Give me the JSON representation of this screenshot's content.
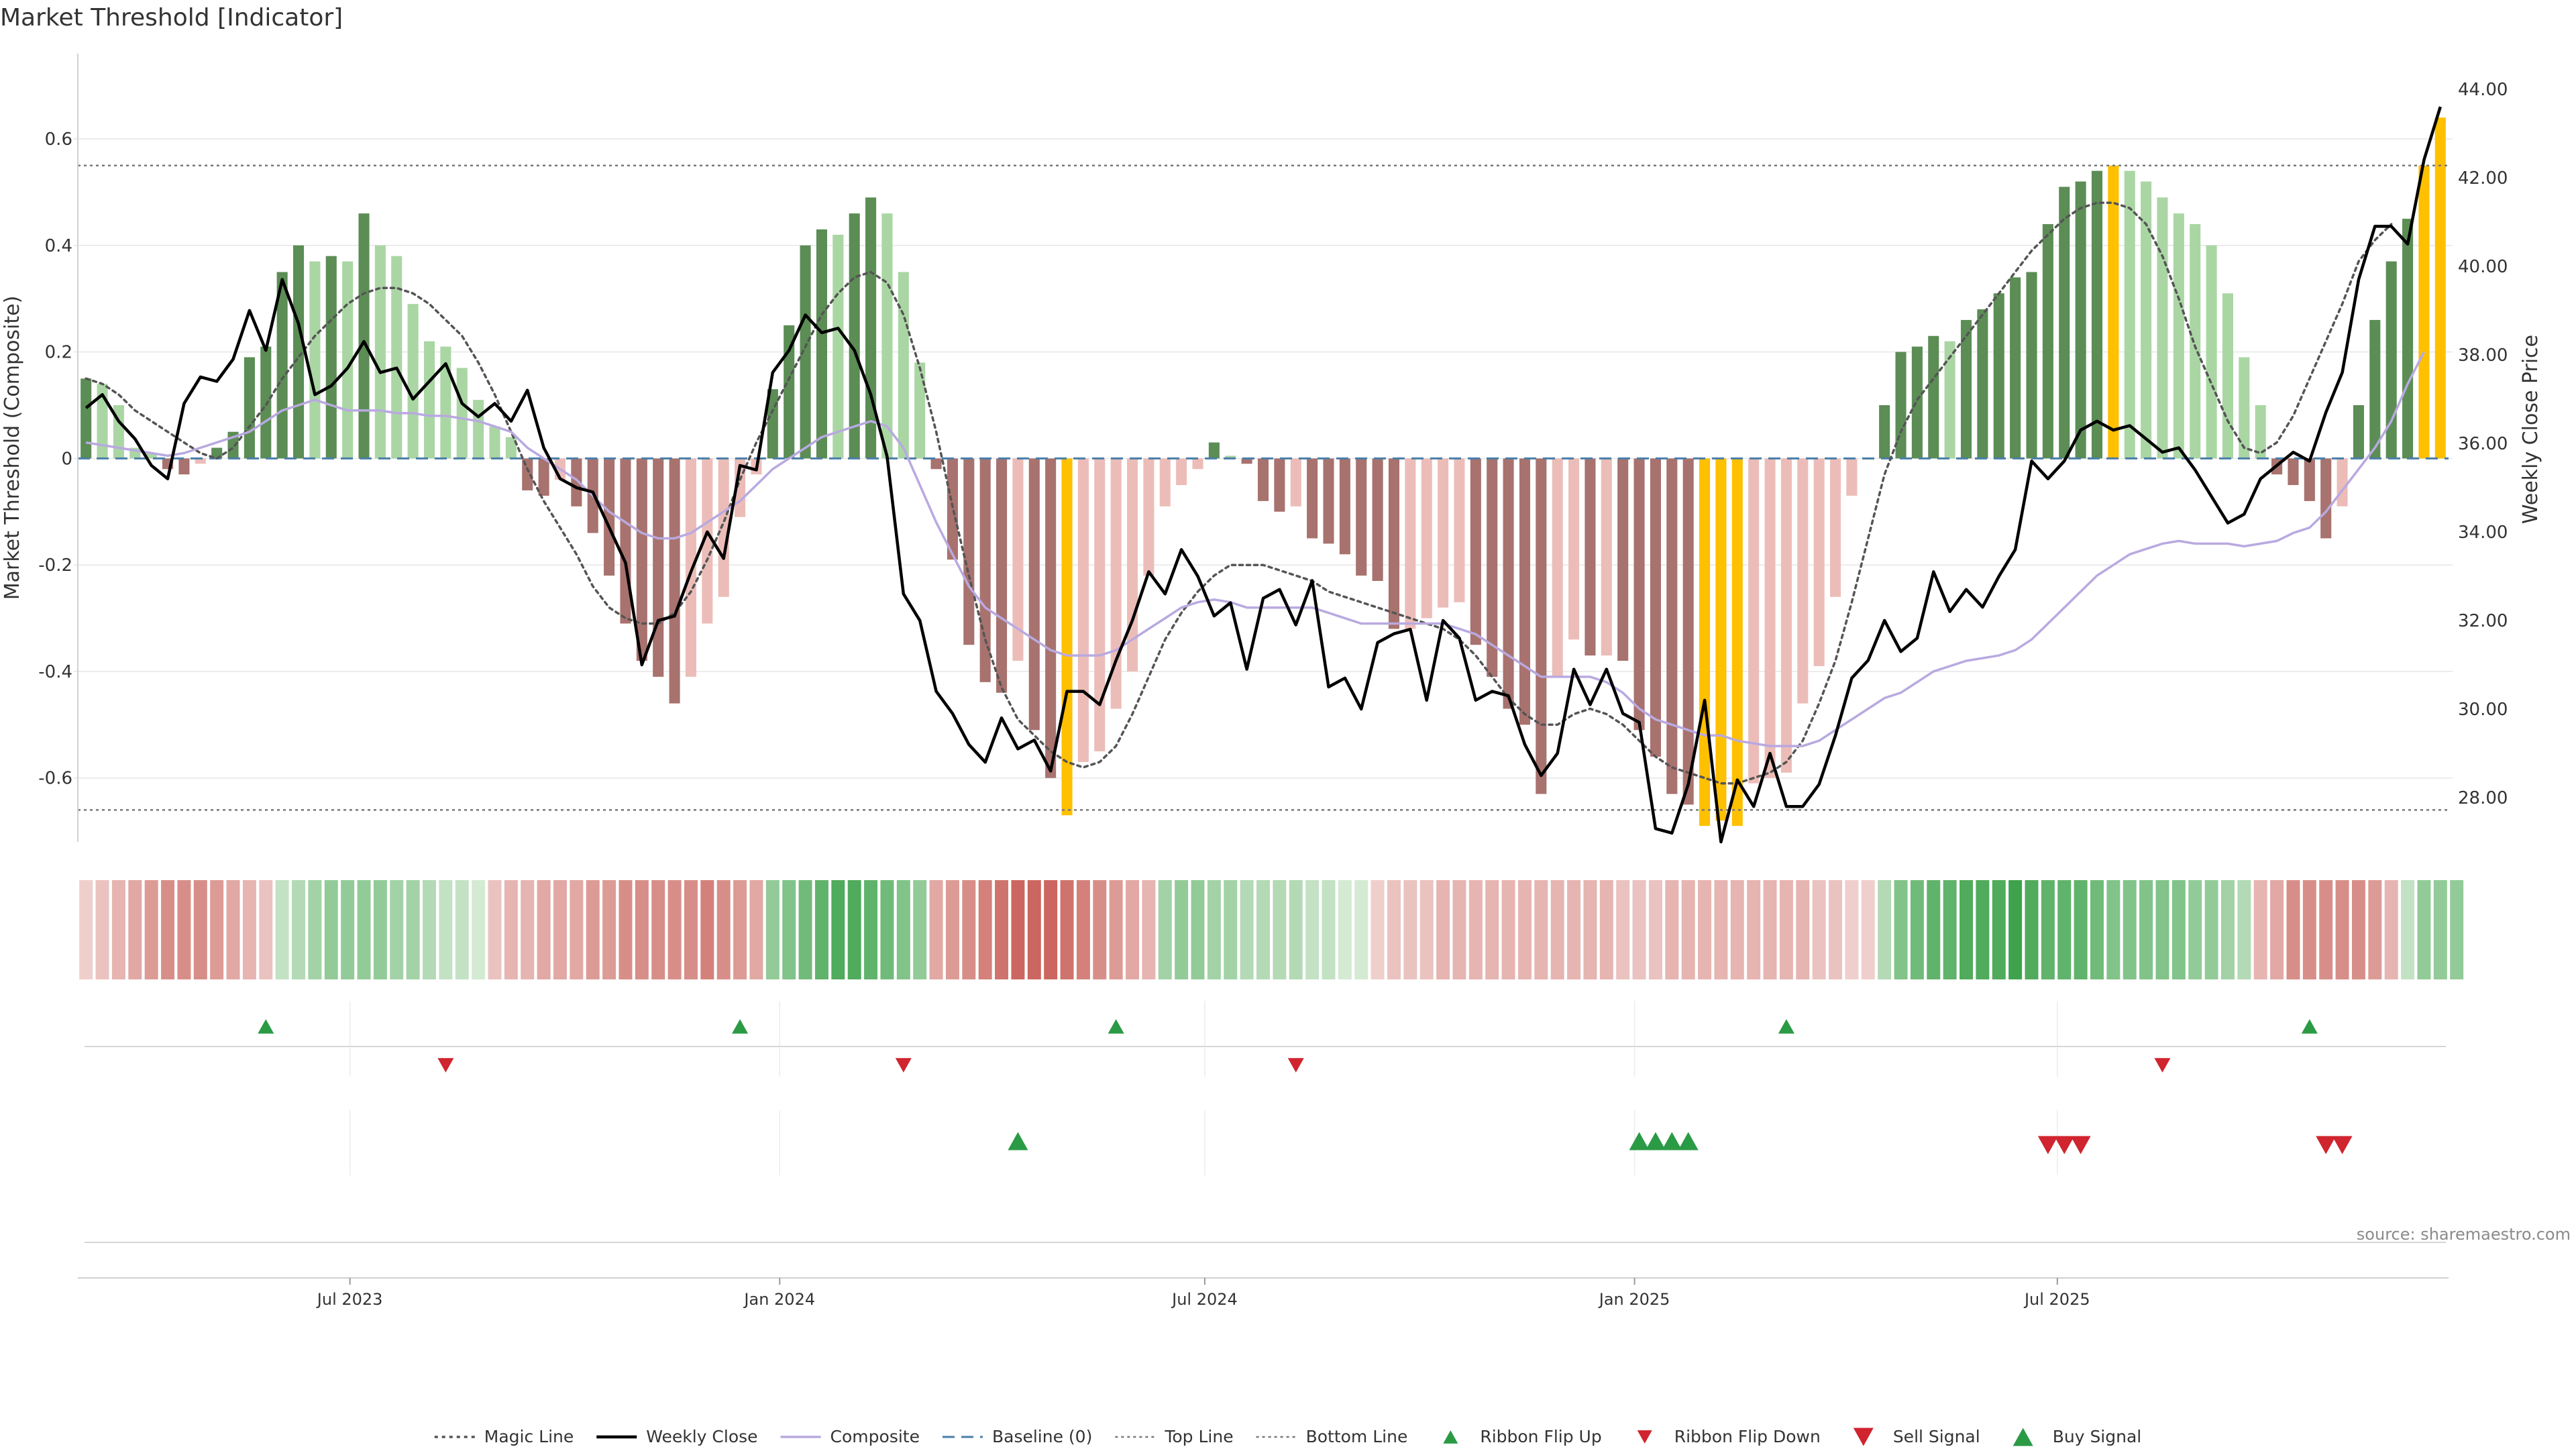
{
  "title": "Market Threshold [Indicator]",
  "source_label": "source: sharemaestro.com",
  "colors": {
    "bar_pos_strong": "#5b8d55",
    "bar_pos_weak": "#aad6a4",
    "bar_neg_strong": "#a8726e",
    "bar_neg_weak": "#ecbdb8",
    "bar_extreme": "#ffc000",
    "price": "#000000",
    "composite": "#b9a9e0",
    "magic": "#555555",
    "baseline": "#4a7ea8",
    "threshold": "#777777",
    "up_marker": "#2a9a45",
    "down_marker": "#d0242e",
    "ribbon_green_dark": "#3fa34d",
    "ribbon_red_dark": "#c65a52"
  },
  "chart_data": {
    "type": "bar+line",
    "frequency": "weekly",
    "start_date": "2023-03-10",
    "x_ticks": [
      {
        "date": "2023-07-01",
        "label": "Jul 2023"
      },
      {
        "date": "2024-01-01",
        "label": "Jan 2024"
      },
      {
        "date": "2024-07-01",
        "label": "Jul 2024"
      },
      {
        "date": "2025-01-01",
        "label": "Jan 2025"
      },
      {
        "date": "2025-07-01",
        "label": "Jul 2025"
      }
    ],
    "left_axis": {
      "label": "Market Threshold (Composite)",
      "range": [
        -0.72,
        0.76
      ],
      "ticks": [
        -0.6,
        -0.4,
        -0.2,
        0,
        0.2,
        0.4,
        0.6
      ],
      "tick_labels": [
        "-0.6",
        "-0.4",
        "-0.2",
        "0",
        "0.2",
        "0.4",
        "0.6"
      ]
    },
    "right_axis": {
      "label": "Weekly Close Price",
      "range": [
        27.0,
        44.8
      ],
      "ticks": [
        28,
        30,
        32,
        34,
        36,
        38,
        40,
        42,
        44
      ],
      "tick_labels": [
        "28.00",
        "30.00",
        "32.00",
        "34.00",
        "36.00",
        "38.00",
        "40.00",
        "42.00",
        "44.00"
      ]
    },
    "top_line": 0.55,
    "bottom_line": -0.66,
    "baseline": 0,
    "bars": [
      0.15,
      0.14,
      0.1,
      0.02,
      0.01,
      -0.02,
      -0.03,
      -0.01,
      0.02,
      0.05,
      0.19,
      0.21,
      0.35,
      0.4,
      0.37,
      0.38,
      0.37,
      0.46,
      0.4,
      0.38,
      0.29,
      0.22,
      0.21,
      0.17,
      0.11,
      0.06,
      0.04,
      -0.06,
      -0.07,
      -0.04,
      -0.09,
      -0.14,
      -0.22,
      -0.31,
      -0.38,
      -0.41,
      -0.46,
      -0.41,
      -0.31,
      -0.26,
      -0.11,
      -0.03,
      0.13,
      0.25,
      0.4,
      0.43,
      0.42,
      0.46,
      0.49,
      0.46,
      0.35,
      0.18,
      -0.02,
      -0.19,
      -0.35,
      -0.42,
      -0.44,
      -0.38,
      -0.51,
      -0.6,
      -0.67,
      -0.57,
      -0.55,
      -0.47,
      -0.4,
      -0.22,
      -0.09,
      -0.05,
      -0.02,
      0.03,
      0.005,
      -0.01,
      -0.08,
      -0.1,
      -0.09,
      -0.15,
      -0.16,
      -0.18,
      -0.22,
      -0.23,
      -0.32,
      -0.32,
      -0.3,
      -0.28,
      -0.27,
      -0.35,
      -0.41,
      -0.47,
      -0.5,
      -0.63,
      -0.41,
      -0.34,
      -0.37,
      -0.37,
      -0.38,
      -0.51,
      -0.56,
      -0.63,
      -0.65,
      -0.69,
      -0.68,
      -0.69,
      -0.61,
      -0.6,
      -0.59,
      -0.46,
      -0.39,
      -0.26,
      -0.07,
      0.0,
      0.1,
      0.2,
      0.21,
      0.23,
      0.22,
      0.26,
      0.28,
      0.31,
      0.34,
      0.35,
      0.44,
      0.51,
      0.52,
      0.54,
      0.55,
      0.54,
      0.52,
      0.49,
      0.46,
      0.44,
      0.4,
      0.31,
      0.19,
      0.1,
      -0.03,
      -0.05,
      -0.08,
      -0.15,
      -0.09,
      0.1,
      0.26,
      0.37,
      0.45,
      0.55,
      0.64
    ],
    "weekly_close": [
      36.8,
      37.1,
      36.5,
      36.1,
      35.5,
      35.2,
      36.9,
      37.5,
      37.4,
      37.9,
      39.0,
      38.1,
      39.7,
      38.7,
      37.1,
      37.3,
      37.7,
      38.3,
      37.6,
      37.7,
      37.0,
      37.4,
      37.8,
      36.9,
      36.6,
      36.9,
      36.5,
      37.2,
      35.9,
      35.2,
      35.0,
      34.9,
      34.1,
      33.3,
      31.0,
      32.0,
      32.1,
      33.1,
      34.0,
      33.4,
      35.5,
      35.4,
      37.6,
      38.1,
      38.9,
      38.5,
      38.6,
      38.1,
      37.1,
      35.7,
      32.6,
      32.0,
      30.4,
      29.9,
      29.2,
      28.8,
      29.8,
      29.1,
      29.3,
      28.6,
      30.4,
      30.4,
      30.1,
      31.1,
      32.0,
      33.1,
      32.6,
      33.6,
      33.0,
      32.1,
      32.4,
      30.9,
      32.5,
      32.7,
      31.9,
      32.9,
      30.5,
      30.7,
      30.0,
      31.5,
      31.7,
      31.8,
      30.2,
      32.0,
      31.6,
      30.2,
      30.4,
      30.3,
      29.2,
      28.5,
      29.0,
      30.9,
      30.1,
      30.9,
      29.9,
      29.7,
      27.3,
      27.2,
      28.3,
      30.2,
      27.0,
      28.4,
      27.8,
      29.0,
      27.8,
      27.8,
      28.3,
      29.4,
      30.7,
      31.1,
      32.0,
      31.3,
      31.6,
      33.1,
      32.2,
      32.7,
      32.3,
      33.0,
      33.6,
      35.6,
      35.2,
      35.6,
      36.3,
      36.5,
      36.3,
      36.4,
      36.1,
      35.8,
      35.9,
      35.4,
      34.8,
      34.2,
      34.4,
      35.2,
      35.5,
      35.8,
      35.6,
      36.7,
      37.6,
      39.7,
      40.9,
      40.9,
      40.5,
      42.4,
      43.6
    ],
    "composite": [
      0.03,
      0.025,
      0.02,
      0.015,
      0.01,
      0.005,
      0.01,
      0.02,
      0.03,
      0.04,
      0.05,
      0.07,
      0.09,
      0.1,
      0.11,
      0.1,
      0.09,
      0.09,
      0.09,
      0.085,
      0.085,
      0.08,
      0.08,
      0.075,
      0.07,
      0.06,
      0.05,
      0.02,
      0.0,
      -0.02,
      -0.04,
      -0.07,
      -0.1,
      -0.12,
      -0.14,
      -0.15,
      -0.15,
      -0.14,
      -0.12,
      -0.1,
      -0.08,
      -0.05,
      -0.02,
      0.0,
      0.02,
      0.04,
      0.05,
      0.06,
      0.07,
      0.06,
      0.02,
      -0.05,
      -0.12,
      -0.18,
      -0.24,
      -0.28,
      -0.3,
      -0.32,
      -0.34,
      -0.36,
      -0.37,
      -0.37,
      -0.37,
      -0.36,
      -0.34,
      -0.32,
      -0.3,
      -0.28,
      -0.27,
      -0.265,
      -0.27,
      -0.28,
      -0.28,
      -0.28,
      -0.28,
      -0.28,
      -0.29,
      -0.3,
      -0.31,
      -0.31,
      -0.31,
      -0.31,
      -0.31,
      -0.31,
      -0.32,
      -0.33,
      -0.35,
      -0.37,
      -0.39,
      -0.41,
      -0.41,
      -0.41,
      -0.41,
      -0.42,
      -0.44,
      -0.47,
      -0.49,
      -0.5,
      -0.51,
      -0.52,
      -0.52,
      -0.53,
      -0.535,
      -0.54,
      -0.54,
      -0.54,
      -0.53,
      -0.51,
      -0.49,
      -0.47,
      -0.45,
      -0.44,
      -0.42,
      -0.4,
      -0.39,
      -0.38,
      -0.375,
      -0.37,
      -0.36,
      -0.34,
      -0.31,
      -0.28,
      -0.25,
      -0.22,
      -0.2,
      -0.18,
      -0.17,
      -0.16,
      -0.155,
      -0.16,
      -0.16,
      -0.16,
      -0.165,
      -0.16,
      -0.155,
      -0.14,
      -0.13,
      -0.1,
      -0.06,
      -0.02,
      0.02,
      0.07,
      0.14,
      0.2
    ],
    "magic": [
      0.15,
      0.14,
      0.12,
      0.09,
      0.07,
      0.05,
      0.03,
      0.01,
      0.0,
      0.02,
      0.06,
      0.1,
      0.15,
      0.19,
      0.23,
      0.26,
      0.29,
      0.31,
      0.32,
      0.32,
      0.31,
      0.29,
      0.26,
      0.23,
      0.18,
      0.12,
      0.05,
      -0.02,
      -0.08,
      -0.13,
      -0.18,
      -0.24,
      -0.28,
      -0.3,
      -0.31,
      -0.31,
      -0.29,
      -0.25,
      -0.19,
      -0.12,
      -0.04,
      0.03,
      0.09,
      0.15,
      0.21,
      0.27,
      0.31,
      0.34,
      0.35,
      0.33,
      0.27,
      0.17,
      0.05,
      -0.09,
      -0.22,
      -0.34,
      -0.43,
      -0.49,
      -0.52,
      -0.55,
      -0.57,
      -0.58,
      -0.57,
      -0.54,
      -0.48,
      -0.41,
      -0.34,
      -0.29,
      -0.25,
      -0.22,
      -0.2,
      -0.2,
      -0.2,
      -0.21,
      -0.22,
      -0.23,
      -0.25,
      -0.26,
      -0.27,
      -0.28,
      -0.29,
      -0.3,
      -0.31,
      -0.32,
      -0.34,
      -0.37,
      -0.41,
      -0.45,
      -0.48,
      -0.5,
      -0.5,
      -0.48,
      -0.47,
      -0.48,
      -0.5,
      -0.53,
      -0.56,
      -0.58,
      -0.59,
      -0.6,
      -0.61,
      -0.61,
      -0.6,
      -0.59,
      -0.57,
      -0.53,
      -0.46,
      -0.38,
      -0.27,
      -0.15,
      -0.03,
      0.05,
      0.11,
      0.15,
      0.19,
      0.23,
      0.27,
      0.31,
      0.35,
      0.39,
      0.42,
      0.45,
      0.47,
      0.48,
      0.48,
      0.47,
      0.44,
      0.38,
      0.3,
      0.21,
      0.14,
      0.07,
      0.02,
      0.01,
      0.03,
      0.08,
      0.15,
      0.22,
      0.29,
      0.37,
      0.41,
      0.44
    ],
    "ribbon_levels": [
      -0.1,
      -0.2,
      -0.3,
      -0.4,
      -0.5,
      -0.6,
      -0.6,
      -0.6,
      -0.5,
      -0.4,
      -0.3,
      -0.2,
      0.2,
      0.3,
      0.4,
      0.5,
      0.5,
      0.5,
      0.5,
      0.4,
      0.4,
      0.3,
      0.2,
      0.2,
      0.1,
      -0.2,
      -0.3,
      -0.3,
      -0.4,
      -0.4,
      -0.4,
      -0.5,
      -0.5,
      -0.6,
      -0.6,
      -0.6,
      -0.6,
      -0.6,
      -0.7,
      -0.6,
      -0.5,
      -0.4,
      0.5,
      0.6,
      0.7,
      0.8,
      0.9,
      0.9,
      0.8,
      0.7,
      0.6,
      0.5,
      -0.4,
      -0.5,
      -0.6,
      -0.7,
      -0.8,
      -0.9,
      -0.9,
      -0.9,
      -0.8,
      -0.7,
      -0.6,
      -0.5,
      -0.4,
      -0.3,
      0.4,
      0.5,
      0.5,
      0.4,
      0.4,
      0.3,
      0.3,
      0.3,
      0.3,
      0.2,
      0.2,
      0.1,
      0.1,
      -0.1,
      -0.2,
      -0.2,
      -0.2,
      -0.3,
      -0.3,
      -0.3,
      -0.3,
      -0.3,
      -0.3,
      -0.3,
      -0.3,
      -0.3,
      -0.3,
      -0.3,
      -0.2,
      -0.2,
      -0.2,
      -0.3,
      -0.3,
      -0.3,
      -0.3,
      -0.3,
      -0.3,
      -0.3,
      -0.3,
      -0.3,
      -0.2,
      -0.2,
      -0.1,
      -0.1,
      0.3,
      0.6,
      0.7,
      0.8,
      0.8,
      0.9,
      0.9,
      0.9,
      1.0,
      0.9,
      0.8,
      0.8,
      0.8,
      0.7,
      0.6,
      0.6,
      0.6,
      0.6,
      0.6,
      0.5,
      0.5,
      0.4,
      0.3,
      -0.3,
      -0.4,
      -0.6,
      -0.6,
      -0.6,
      -0.6,
      -0.6,
      -0.5,
      -0.3,
      0.2,
      0.5,
      0.5,
      0.5
    ],
    "ribbon_flip_up": [
      11,
      40,
      63,
      104,
      136
    ],
    "ribbon_flip_down": [
      22,
      50,
      74,
      127
    ],
    "buy_signal": [
      57,
      95,
      96,
      97,
      98
    ],
    "sell_signal": [
      120,
      121,
      122,
      137,
      138
    ]
  },
  "legend": [
    {
      "name": "magic",
      "label": "Magic Line",
      "style": "dotted-line"
    },
    {
      "name": "weekly_close",
      "label": "Weekly Close",
      "style": "solid-line"
    },
    {
      "name": "composite",
      "label": "Composite",
      "style": "thin-line"
    },
    {
      "name": "baseline",
      "label": "Baseline (0)",
      "style": "dashed-line"
    },
    {
      "name": "top_line",
      "label": "Top Line",
      "style": "fine-dotted"
    },
    {
      "name": "bottom_line",
      "label": "Bottom Line",
      "style": "fine-dotted"
    },
    {
      "name": "ribbon_flip_up",
      "label": "Ribbon Flip Up",
      "style": "triangle-up"
    },
    {
      "name": "ribbon_flip_down",
      "label": "Ribbon Flip Down",
      "style": "triangle-down"
    },
    {
      "name": "sell_signal",
      "label": "Sell Signal",
      "style": "triangle-down-big"
    },
    {
      "name": "buy_signal",
      "label": "Buy Signal",
      "style": "triangle-up-big"
    }
  ]
}
